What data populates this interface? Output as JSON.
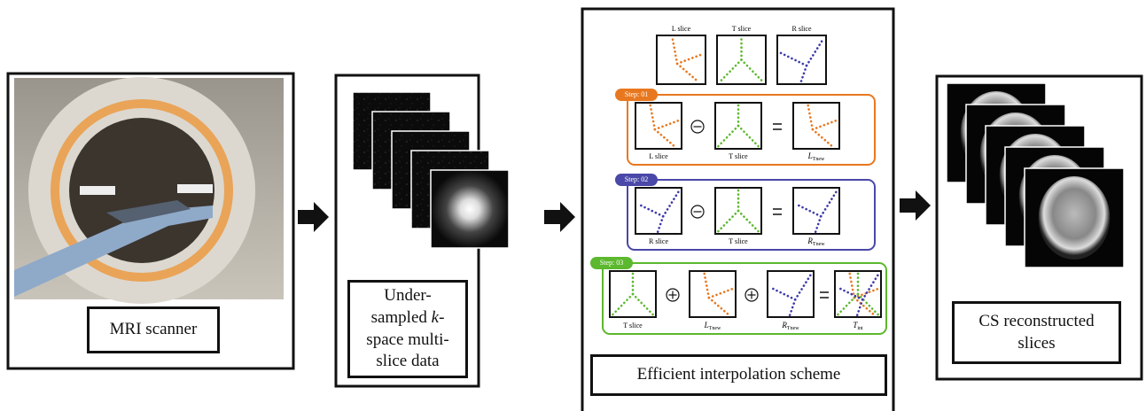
{
  "panels": {
    "scanner": {
      "label": "MRI scanner"
    },
    "kspace": {
      "label_parts": [
        "Under-sampled ",
        "k",
        "-space multi-slice data"
      ]
    },
    "interpolation": {
      "label": "Efficient interpolation scheme",
      "top_labels": [
        "L slice",
        "T slice",
        "R slice"
      ],
      "steps": [
        {
          "badge": "Step: 01",
          "labels": [
            "L slice",
            "T slice",
            {
              "main": "L",
              "sub": "Tnew"
            }
          ]
        },
        {
          "badge": "Step: 02",
          "labels": [
            "R slice",
            "T slice",
            {
              "main": "R",
              "sub": "Tnew"
            }
          ]
        },
        {
          "badge": "Step: 03",
          "labels": [
            "T slice",
            {
              "main": "L",
              "sub": "Tnew"
            },
            {
              "main": "R",
              "sub": "Tnew"
            },
            {
              "main": "T",
              "sub": "int"
            }
          ]
        }
      ]
    },
    "reconstruction": {
      "label": "CS reconstructed slices"
    }
  }
}
